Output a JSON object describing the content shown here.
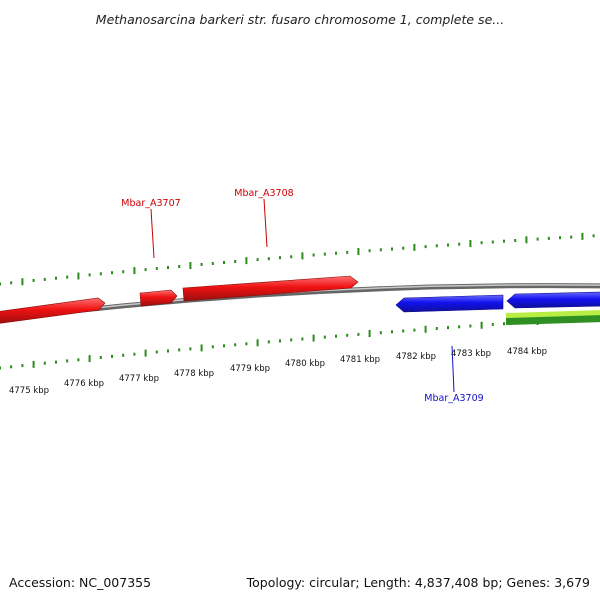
{
  "title": "Methanosarcina barkeri str. fusaro chromosome 1, complete se...",
  "footer": {
    "accession": "Accession: NC_007355",
    "summary": "Topology: circular; Length: 4,837,408 bp; Genes: 3,679"
  },
  "position_labels": [
    "4775 kbp",
    "4776 kbp",
    "4777 kbp",
    "4778 kbp",
    "4779 kbp",
    "4780 kbp",
    "4781 kbp",
    "4782 kbp",
    "4783 kbp",
    "4784 kbp"
  ],
  "genes": [
    {
      "name": "Mbar_A3707",
      "strand": "forward"
    },
    {
      "name": "Mbar_A3708",
      "strand": "forward"
    },
    {
      "name": "Mbar_A3709",
      "strand": "reverse"
    }
  ],
  "colors": {
    "forward_gene": "#ee1111",
    "reverse_gene": "#1111ee",
    "tick": "#2a8a1a",
    "backbone": "#888888",
    "green_band_light": "#b8ee44",
    "green_band_dark": "#3a9a2a"
  }
}
